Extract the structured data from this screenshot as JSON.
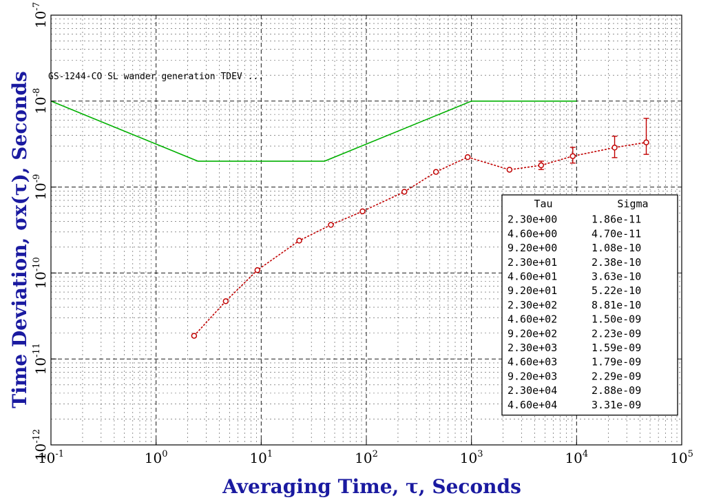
{
  "chart_data": {
    "type": "line",
    "title": "",
    "annotation": "GS-1244-CO SL wander generation TDEV ...",
    "xlabel": "Averaging Time, τ, Seconds",
    "ylabel": "Time Deviation, σx(τ), Seconds",
    "x_scale": "log",
    "y_scale": "log",
    "xlim": [
      0.1,
      100000
    ],
    "ylim": [
      1e-12,
      1e-07
    ],
    "grid": true,
    "x_ticks": [
      {
        "base": "10",
        "exp": "-1",
        "value": 0.1
      },
      {
        "base": "10",
        "exp": "0",
        "value": 1
      },
      {
        "base": "10",
        "exp": "1",
        "value": 10
      },
      {
        "base": "10",
        "exp": "2",
        "value": 100
      },
      {
        "base": "10",
        "exp": "3",
        "value": 1000
      },
      {
        "base": "10",
        "exp": "4",
        "value": 10000
      },
      {
        "base": "10",
        "exp": "5",
        "value": 100000
      }
    ],
    "y_ticks": [
      {
        "base": "10",
        "exp": "-12",
        "value": 1e-12
      },
      {
        "base": "10",
        "exp": "-11",
        "value": 1e-11
      },
      {
        "base": "10",
        "exp": "-10",
        "value": 1e-10
      },
      {
        "base": "10",
        "exp": "-9",
        "value": 1e-09
      },
      {
        "base": "10",
        "exp": "-8",
        "value": 1e-08
      },
      {
        "base": "10",
        "exp": "-7",
        "value": 1e-07
      }
    ],
    "series": [
      {
        "color": "#00b000",
        "style": "solid",
        "x": [
          0.1,
          2.5,
          40,
          1000,
          10000
        ],
        "y": [
          1e-08,
          2e-09,
          2e-09,
          1e-08,
          1e-08
        ]
      },
      {
        "color": "#c00000",
        "style": "dashed",
        "marker": "circle",
        "x": [
          2.3,
          4.6,
          9.2,
          23,
          46,
          92,
          230,
          460,
          920,
          2300,
          4600,
          9200,
          23000,
          46000
        ],
        "y": [
          1.86e-11,
          4.7e-11,
          1.08e-10,
          2.38e-10,
          3.63e-10,
          5.22e-10,
          8.81e-10,
          1.5e-09,
          2.23e-09,
          1.59e-09,
          1.79e-09,
          2.29e-09,
          2.88e-09,
          3.31e-09
        ],
        "err_low": [
          null,
          null,
          null,
          null,
          null,
          null,
          null,
          null,
          null,
          null,
          1.6e-09,
          1.9e-09,
          2.2e-09,
          2.4e-09
        ],
        "err_high": [
          null,
          null,
          null,
          null,
          null,
          null,
          null,
          null,
          null,
          null,
          2e-09,
          2.9e-09,
          3.9e-09,
          6.3e-09
        ]
      }
    ],
    "legend_table": {
      "placement": "lower-right",
      "headers": [
        "Tau",
        "Sigma"
      ],
      "rows": [
        [
          "2.30e+00",
          "1.86e-11"
        ],
        [
          "4.60e+00",
          "4.70e-11"
        ],
        [
          "9.20e+00",
          "1.08e-10"
        ],
        [
          "2.30e+01",
          "2.38e-10"
        ],
        [
          "4.60e+01",
          "3.63e-10"
        ],
        [
          "9.20e+01",
          "5.22e-10"
        ],
        [
          "2.30e+02",
          "8.81e-10"
        ],
        [
          "4.60e+02",
          "1.50e-09"
        ],
        [
          "9.20e+02",
          "2.23e-09"
        ],
        [
          "2.30e+03",
          "1.59e-09"
        ],
        [
          "4.60e+03",
          "1.79e-09"
        ],
        [
          "9.20e+03",
          "2.29e-09"
        ],
        [
          "2.30e+04",
          "2.88e-09"
        ],
        [
          "4.60e+04",
          "3.31e-09"
        ]
      ]
    },
    "colors": {
      "axis_label": "#1a1aa0",
      "spec_line": "#00b000",
      "data_line": "#c00000",
      "grid": "#000000"
    }
  }
}
